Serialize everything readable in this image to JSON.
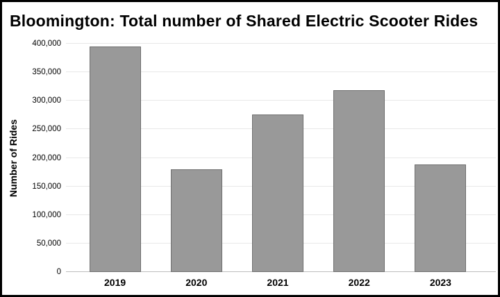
{
  "window": {
    "background": "#ffffff",
    "border_color": "#000000"
  },
  "chart_data": {
    "type": "bar",
    "title": "Bloomington: Total number of Shared Electric Scooter Rides",
    "xlabel": "",
    "ylabel": "Number of Rides",
    "categories": [
      "2019",
      "2020",
      "2021",
      "2022",
      "2023"
    ],
    "values": [
      395000,
      180000,
      276000,
      318000,
      189000
    ],
    "ylim": [
      0,
      400000
    ],
    "ytick_interval": 50000,
    "ytick_labels": [
      "0",
      "50,000",
      "100,000",
      "150,000",
      "200,000",
      "250,000",
      "300,000",
      "350,000",
      "400,000"
    ],
    "grid": true,
    "legend_position": "none",
    "colors": {
      "bar_fill": "#999999",
      "bar_border": "#6e6e6e",
      "gridline": "#e8e8e8",
      "zero_line": "#bdbdbd",
      "text": "#000000"
    }
  }
}
